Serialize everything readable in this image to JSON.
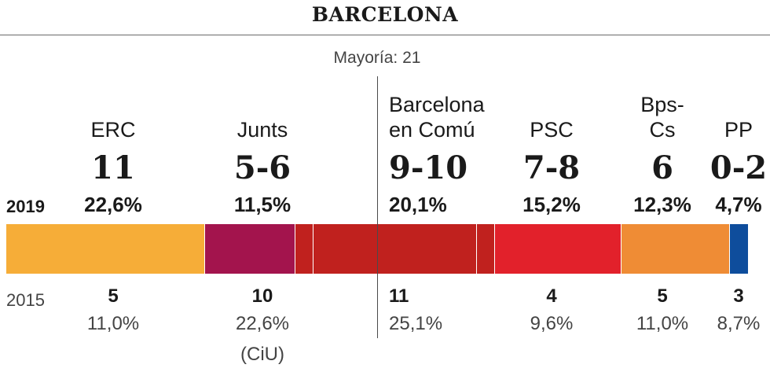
{
  "title": "BARCELONA",
  "majority_label": "Mayoría: 21",
  "chart_data": {
    "type": "bar",
    "orientation": "horizontal-stacked",
    "title": "BARCELONA",
    "years": [
      "2019",
      "2015"
    ],
    "majority_seats": 21,
    "parties": [
      {
        "id": "erc",
        "name_lines": [
          "ERC"
        ],
        "seats_2019": "11",
        "pct_2019": "22,6%",
        "seats_2015": "5",
        "pct_2015": "11,0%",
        "note_2015": ""
      },
      {
        "id": "junts",
        "name_lines": [
          "Junts"
        ],
        "seats_2019": "5-6",
        "pct_2019": "11,5%",
        "seats_2015": "10",
        "pct_2015": "22,6%",
        "note_2015": "(CiU)"
      },
      {
        "id": "bcomu",
        "name_lines": [
          "Barcelona",
          "en Comú"
        ],
        "seats_2019": "9-10",
        "pct_2019": "20,1%",
        "seats_2015": "11",
        "pct_2015": "25,1%",
        "note_2015": ""
      },
      {
        "id": "psc",
        "name_lines": [
          "PSC"
        ],
        "seats_2019": "7-8",
        "pct_2019": "15,2%",
        "seats_2015": "4",
        "pct_2015": "9,6%",
        "note_2015": ""
      },
      {
        "id": "bpscs",
        "name_lines": [
          "Bps-",
          "Cs"
        ],
        "seats_2019": "6",
        "pct_2019": "12,3%",
        "seats_2015": "5",
        "pct_2015": "11,0%",
        "note_2015": ""
      },
      {
        "id": "pp",
        "name_lines": [
          "PP"
        ],
        "seats_2019": "0-2",
        "pct_2019": "4,7%",
        "seats_2015": "3",
        "pct_2015": "8,7%",
        "note_2015": ""
      }
    ],
    "bar_segments": [
      {
        "party": "erc",
        "seats": 11,
        "color": "#f6ad38"
      },
      {
        "party": "junts",
        "seats": 5,
        "color": "#a3144d"
      },
      {
        "party": "junts",
        "seats": 1,
        "color": "#c0211e"
      },
      {
        "party": "bcomu",
        "seats": 9,
        "color": "#c0211e"
      },
      {
        "party": "psc",
        "seats": 1,
        "color": "#c0211e"
      },
      {
        "party": "psc",
        "seats": 7,
        "color": "#e2212b"
      },
      {
        "party": "bpscs",
        "seats": 6,
        "color": "#ef8c35"
      },
      {
        "party": "pp",
        "seats": 1,
        "color": "#0e4d9c"
      }
    ],
    "total_seats": 41
  }
}
